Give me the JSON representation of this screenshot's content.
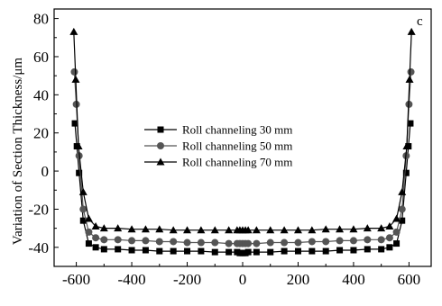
{
  "chart_data": {
    "type": "line",
    "panel_label": "c",
    "title": "",
    "xlabel": "",
    "ylabel": "Variation of Section Thickness/μm",
    "xlim": [
      -680,
      680
    ],
    "ylim": [
      -50,
      85
    ],
    "xticks": [
      -600,
      -400,
      -200,
      0,
      200,
      400,
      600
    ],
    "yticks": [
      -40,
      -20,
      0,
      20,
      40,
      60,
      80
    ],
    "grid": false,
    "legend_position": "center-left",
    "colors": {
      "series_30": "#000000",
      "series_50": "#555555",
      "series_70": "#000000",
      "axis": "#000000"
    },
    "series": [
      {
        "name": "Roll channeling 30 mm",
        "marker": "square",
        "x": [
          -605,
          -598,
          -590,
          -575,
          -555,
          -530,
          -500,
          -450,
          -400,
          -350,
          -300,
          -250,
          -200,
          -150,
          -100,
          -50,
          -20,
          -10,
          0,
          10,
          20,
          50,
          100,
          150,
          200,
          250,
          300,
          350,
          400,
          450,
          500,
          530,
          555,
          575,
          590,
          598,
          605
        ],
        "y": [
          25,
          13,
          -1,
          -26,
          -38,
          -40,
          -41,
          -41,
          -41.5,
          -41.5,
          -42,
          -42,
          -42,
          -42,
          -42.5,
          -42.5,
          -42.5,
          -43,
          -43,
          -43,
          -42.5,
          -42.5,
          -42.5,
          -42,
          -42,
          -42,
          -42,
          -41.5,
          -41.5,
          -41,
          -41,
          -40,
          -38,
          -26,
          -1,
          13,
          25
        ]
      },
      {
        "name": "Roll channeling 50 mm",
        "marker": "circle",
        "x": [
          -607,
          -600,
          -590,
          -575,
          -555,
          -530,
          -500,
          -450,
          -400,
          -350,
          -300,
          -250,
          -200,
          -150,
          -100,
          -50,
          -20,
          -10,
          0,
          10,
          20,
          50,
          100,
          150,
          200,
          250,
          300,
          350,
          400,
          450,
          500,
          530,
          555,
          575,
          590,
          600,
          607
        ],
        "y": [
          52,
          35,
          8,
          -20,
          -32,
          -35,
          -36,
          -36,
          -36.5,
          -36.5,
          -37,
          -37,
          -37.5,
          -37.5,
          -37.5,
          -38,
          -38,
          -38,
          -38,
          -38,
          -38,
          -38,
          -37.5,
          -37.5,
          -37.5,
          -37,
          -37,
          -36.5,
          -36.5,
          -36,
          -36,
          -35,
          -32,
          -20,
          8,
          35,
          52
        ]
      },
      {
        "name": "Roll channeling 70 mm",
        "marker": "triangle",
        "x": [
          -609,
          -602,
          -592,
          -575,
          -555,
          -530,
          -500,
          -450,
          -400,
          -350,
          -300,
          -250,
          -200,
          -150,
          -100,
          -50,
          -20,
          -10,
          0,
          10,
          20,
          50,
          100,
          150,
          200,
          250,
          300,
          350,
          400,
          450,
          500,
          530,
          555,
          575,
          592,
          602,
          609
        ],
        "y": [
          73,
          48,
          13,
          -11,
          -25,
          -29,
          -30,
          -30,
          -30.5,
          -30.5,
          -30.5,
          -31,
          -31,
          -31,
          -31,
          -31,
          -31,
          -31,
          -31,
          -31,
          -31,
          -31,
          -31,
          -31,
          -31,
          -31,
          -30.5,
          -30.5,
          -30.5,
          -30,
          -30,
          -29,
          -25,
          -11,
          13,
          48,
          73
        ]
      }
    ]
  }
}
